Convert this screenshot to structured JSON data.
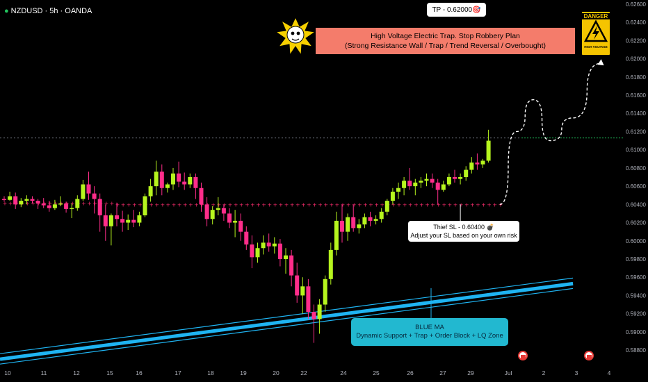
{
  "header": {
    "symbol_title": "NZDUSD · 5h · OANDA"
  },
  "annotations": {
    "tp_label": "TP - 0.62000🎯",
    "banner_line1": "High Voltage Electric Trap. Stop Robbery Plan",
    "banner_line2": "(Strong Resistance Wall / Trap / Trend Reversal / Overbought)",
    "sl_line1": "Thief SL - 0.60400 💣",
    "sl_line2": "Adjust your SL based on your own risk",
    "ma_line1": "BLUE MA",
    "ma_line2": "Dynamic Support + Trap + Order Block + LQ Zone",
    "danger_title": "DANGER",
    "danger_sub": "HIGH VOLTAGE"
  },
  "colors": {
    "bull": "#b6f51e",
    "bear": "#ff2d8a",
    "ma": "#1fb4f2",
    "dots": "#ff2d6f",
    "resistance": "#787b86",
    "target": "#22c55e",
    "background": "#000000",
    "axis_text": "#b2b5be"
  },
  "chart_data": {
    "type": "candlestick",
    "symbol": "NZDUSD",
    "timeframe": "5h",
    "source": "OANDA",
    "x_ticks": [
      "10",
      "11",
      "12",
      "15",
      "16",
      "17",
      "18",
      "19",
      "20",
      "22",
      "24",
      "25",
      "26",
      "27",
      "29",
      "Jul",
      "2",
      "3",
      "4"
    ],
    "y_ticks": [
      "0.62600",
      "0.62400",
      "0.62200",
      "0.62000",
      "0.61800",
      "0.61600",
      "0.61400",
      "0.61200",
      "0.61000",
      "0.60800",
      "0.60600",
      "0.60400",
      "0.60200",
      "0.60000",
      "0.59800",
      "0.59600",
      "0.59400",
      "0.59200",
      "0.59000",
      "0.58800"
    ],
    "y_range": [
      0.5877,
      0.6263
    ],
    "ohlc": [
      [
        0.6046,
        0.6049,
        0.6043,
        0.6045
      ],
      [
        0.6045,
        0.6054,
        0.6044,
        0.6049
      ],
      [
        0.6049,
        0.6053,
        0.6035,
        0.604
      ],
      [
        0.604,
        0.6047,
        0.6037,
        0.6044
      ],
      [
        0.6044,
        0.605,
        0.604,
        0.6046
      ],
      [
        0.6046,
        0.6049,
        0.6041,
        0.6044
      ],
      [
        0.6044,
        0.6046,
        0.6035,
        0.6041
      ],
      [
        0.6041,
        0.6047,
        0.6036,
        0.6039
      ],
      [
        0.6039,
        0.6044,
        0.6032,
        0.6036
      ],
      [
        0.6036,
        0.6045,
        0.6034,
        0.604
      ],
      [
        0.604,
        0.6049,
        0.6038,
        0.6041
      ],
      [
        0.6041,
        0.6043,
        0.6031,
        0.6035
      ],
      [
        0.6035,
        0.6041,
        0.6025,
        0.6036
      ],
      [
        0.6036,
        0.605,
        0.6033,
        0.6046
      ],
      [
        0.6046,
        0.6067,
        0.6044,
        0.6062
      ],
      [
        0.6062,
        0.6076,
        0.6045,
        0.6052
      ],
      [
        0.6052,
        0.606,
        0.603,
        0.6046
      ],
      [
        0.6046,
        0.6052,
        0.601,
        0.6028
      ],
      [
        0.6028,
        0.604,
        0.6,
        0.6016
      ],
      [
        0.6016,
        0.603,
        0.5995,
        0.6028
      ],
      [
        0.6028,
        0.6042,
        0.6016,
        0.6024
      ],
      [
        0.6024,
        0.6033,
        0.601,
        0.602
      ],
      [
        0.602,
        0.6029,
        0.6012,
        0.6023
      ],
      [
        0.6023,
        0.6034,
        0.6015,
        0.602
      ],
      [
        0.602,
        0.6032,
        0.6016,
        0.6028
      ],
      [
        0.6028,
        0.6052,
        0.6026,
        0.6049
      ],
      [
        0.6049,
        0.6068,
        0.6043,
        0.606
      ],
      [
        0.606,
        0.6088,
        0.605,
        0.6076
      ],
      [
        0.6076,
        0.6084,
        0.605,
        0.6058
      ],
      [
        0.6058,
        0.6064,
        0.6053,
        0.6062
      ],
      [
        0.6062,
        0.608,
        0.6056,
        0.6074
      ],
      [
        0.6074,
        0.6087,
        0.6059,
        0.6065
      ],
      [
        0.6065,
        0.6075,
        0.6056,
        0.6062
      ],
      [
        0.6062,
        0.6074,
        0.6058,
        0.607
      ],
      [
        0.607,
        0.6074,
        0.6046,
        0.6058
      ],
      [
        0.6058,
        0.6064,
        0.6032,
        0.604
      ],
      [
        0.604,
        0.6048,
        0.6016,
        0.6024
      ],
      [
        0.6024,
        0.6038,
        0.6018,
        0.6034
      ],
      [
        0.6034,
        0.6048,
        0.6028,
        0.6036
      ],
      [
        0.6036,
        0.604,
        0.6022,
        0.603
      ],
      [
        0.603,
        0.6036,
        0.6014,
        0.602
      ],
      [
        0.602,
        0.6034,
        0.6004,
        0.6022
      ],
      [
        0.6022,
        0.603,
        0.6,
        0.601
      ],
      [
        0.601,
        0.6016,
        0.599,
        0.5996
      ],
      [
        0.5996,
        0.6006,
        0.597,
        0.5982
      ],
      [
        0.5982,
        0.5998,
        0.5976,
        0.5992
      ],
      [
        0.5992,
        0.6006,
        0.5985,
        0.5998
      ],
      [
        0.5998,
        0.6008,
        0.5988,
        0.5994
      ],
      [
        0.5994,
        0.6004,
        0.5986,
        0.5997
      ],
      [
        0.5997,
        0.6002,
        0.5972,
        0.598
      ],
      [
        0.598,
        0.5992,
        0.5964,
        0.5984
      ],
      [
        0.5984,
        0.599,
        0.595,
        0.5962
      ],
      [
        0.5962,
        0.5976,
        0.5932,
        0.594
      ],
      [
        0.594,
        0.596,
        0.592,
        0.595
      ],
      [
        0.595,
        0.5958,
        0.5914,
        0.5922
      ],
      [
        0.5922,
        0.593,
        0.5888,
        0.5914
      ],
      [
        0.5914,
        0.5936,
        0.5898,
        0.593
      ],
      [
        0.593,
        0.5962,
        0.5922,
        0.5958
      ],
      [
        0.5958,
        0.5998,
        0.5952,
        0.599
      ],
      [
        0.599,
        0.6032,
        0.5984,
        0.6022
      ],
      [
        0.6022,
        0.604,
        0.5998,
        0.601
      ],
      [
        0.601,
        0.603,
        0.6,
        0.6026
      ],
      [
        0.6026,
        0.604,
        0.601,
        0.6014
      ],
      [
        0.6014,
        0.6024,
        0.6008,
        0.6018
      ],
      [
        0.6018,
        0.603,
        0.6014,
        0.6026
      ],
      [
        0.6026,
        0.6032,
        0.6016,
        0.6022
      ],
      [
        0.6022,
        0.6028,
        0.6018,
        0.6024
      ],
      [
        0.6024,
        0.6036,
        0.602,
        0.6032
      ],
      [
        0.6032,
        0.6046,
        0.6028,
        0.6044
      ],
      [
        0.6044,
        0.6058,
        0.604,
        0.6054
      ],
      [
        0.6054,
        0.6064,
        0.6046,
        0.6058
      ],
      [
        0.6058,
        0.607,
        0.605,
        0.6066
      ],
      [
        0.6066,
        0.608,
        0.6056,
        0.606
      ],
      [
        0.606,
        0.6068,
        0.605,
        0.6064
      ],
      [
        0.6064,
        0.607,
        0.6058,
        0.6066
      ],
      [
        0.6066,
        0.6074,
        0.606,
        0.6068
      ],
      [
        0.6068,
        0.6074,
        0.6058,
        0.6064
      ],
      [
        0.6064,
        0.6068,
        0.604,
        0.6056
      ],
      [
        0.6056,
        0.6066,
        0.6054,
        0.6062
      ],
      [
        0.6062,
        0.6074,
        0.606,
        0.607
      ],
      [
        0.607,
        0.6078,
        0.6064,
        0.6068
      ],
      [
        0.6068,
        0.6074,
        0.6062,
        0.607
      ],
      [
        0.607,
        0.6082,
        0.6066,
        0.6078
      ],
      [
        0.6078,
        0.6092,
        0.6074,
        0.6086
      ],
      [
        0.6086,
        0.6096,
        0.6078,
        0.6084
      ],
      [
        0.6084,
        0.609,
        0.608,
        0.6088
      ],
      [
        0.6088,
        0.6122,
        0.6086,
        0.611
      ]
    ],
    "resistance_level": 0.6113,
    "thief_sl_level": 0.604,
    "tp_level": 0.62,
    "projection_path": [
      [
        88,
        0.604
      ],
      [
        91,
        0.612
      ],
      [
        94,
        0.6155
      ],
      [
        97,
        0.611
      ],
      [
        101,
        0.6135
      ],
      [
        106,
        0.6195
      ]
    ],
    "ma_band": {
      "start": [
        0,
        0.587
      ],
      "end": [
        101,
        0.5953
      ]
    }
  }
}
